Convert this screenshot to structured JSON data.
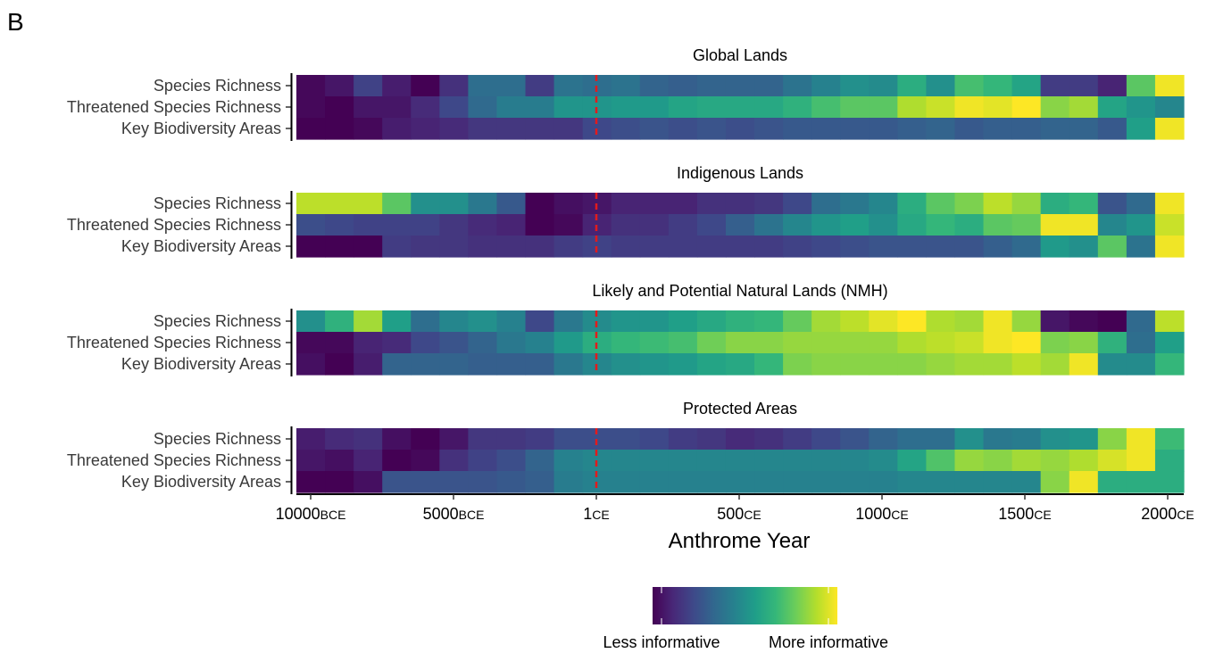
{
  "figure": {
    "panel_label": "B",
    "xlabel": "Anthrome Year"
  },
  "legend": {
    "low_label": "Less informative",
    "high_label": "More informative",
    "colormap": "viridis",
    "colors": [
      "#440154",
      "#482878",
      "#3e4989",
      "#31688e",
      "#26828e",
      "#1f9e89",
      "#35b779",
      "#6ece58",
      "#b5de2b",
      "#fde725"
    ]
  },
  "chart_data": {
    "type": "heatmap",
    "colormap": "viridis",
    "value_range": [
      0,
      1
    ],
    "x_axis": {
      "scale": "piecewise",
      "tick_labels": [
        {
          "year": "10000",
          "era": "BCE"
        },
        {
          "year": "5000",
          "era": "BCE"
        },
        {
          "year": "1",
          "era": "CE"
        },
        {
          "year": "500",
          "era": "CE"
        },
        {
          "year": "1000",
          "era": "CE"
        },
        {
          "year": "1500",
          "era": "CE"
        },
        {
          "year": "2000",
          "era": "CE"
        }
      ]
    },
    "reference_line": {
      "at": "1 CE",
      "style": "dashed",
      "color": "#e31a1c"
    },
    "time_bins": [
      "10000 BCE",
      "9000 BCE",
      "8000 BCE",
      "7000 BCE",
      "6000 BCE",
      "5000 BCE",
      "4000 BCE",
      "3000 BCE",
      "2000 BCE",
      "1000 BCE",
      "0 CE",
      "100 CE",
      "200 CE",
      "300 CE",
      "400 CE",
      "500 CE",
      "600 CE",
      "700 CE",
      "800 CE",
      "900 CE",
      "1000 CE",
      "1100 CE",
      "1200 CE",
      "1300 CE",
      "1400 CE",
      "1500 CE",
      "1600 CE",
      "1700 CE",
      "1800 CE",
      "1900 CE",
      "2000 CE"
    ],
    "rows": [
      "Species Richness",
      "Threatened Species Richness",
      "Key Biodiversity Areas"
    ],
    "panels": [
      {
        "title": "Global Lands",
        "values": [
          [
            0.02,
            0.06,
            0.2,
            0.08,
            0.0,
            0.14,
            0.36,
            0.36,
            0.18,
            0.38,
            0.36,
            0.38,
            0.32,
            0.3,
            0.32,
            0.32,
            0.32,
            0.38,
            0.44,
            0.5,
            0.48,
            0.62,
            0.5,
            0.7,
            0.66,
            0.58,
            0.18,
            0.18,
            0.1,
            0.74,
            0.98
          ],
          [
            0.02,
            0.0,
            0.06,
            0.06,
            0.12,
            0.22,
            0.34,
            0.42,
            0.42,
            0.52,
            0.52,
            0.54,
            0.54,
            0.58,
            0.6,
            0.6,
            0.6,
            0.64,
            0.7,
            0.74,
            0.74,
            0.88,
            0.92,
            0.98,
            0.96,
            1.0,
            0.82,
            0.86,
            0.58,
            0.52,
            0.46
          ],
          [
            0.0,
            0.0,
            0.02,
            0.08,
            0.1,
            0.12,
            0.16,
            0.16,
            0.16,
            0.16,
            0.22,
            0.24,
            0.26,
            0.24,
            0.26,
            0.24,
            0.26,
            0.28,
            0.28,
            0.28,
            0.28,
            0.3,
            0.32,
            0.28,
            0.3,
            0.3,
            0.32,
            0.32,
            0.28,
            0.56,
            0.98
          ]
        ]
      },
      {
        "title": "Indigenous Lands",
        "values": [
          [
            0.9,
            0.9,
            0.9,
            0.74,
            0.5,
            0.5,
            0.4,
            0.28,
            0.0,
            0.04,
            0.06,
            0.1,
            0.1,
            0.1,
            0.14,
            0.14,
            0.16,
            0.22,
            0.36,
            0.4,
            0.46,
            0.62,
            0.74,
            0.8,
            0.9,
            0.84,
            0.62,
            0.66,
            0.26,
            0.34,
            0.98
          ],
          [
            0.24,
            0.22,
            0.2,
            0.2,
            0.2,
            0.16,
            0.12,
            0.1,
            0.0,
            0.02,
            0.1,
            0.14,
            0.14,
            0.18,
            0.22,
            0.3,
            0.38,
            0.46,
            0.52,
            0.56,
            0.5,
            0.6,
            0.66,
            0.62,
            0.74,
            0.76,
            0.98,
            0.98,
            0.46,
            0.52,
            0.92
          ],
          [
            0.0,
            0.0,
            0.0,
            0.18,
            0.16,
            0.16,
            0.14,
            0.14,
            0.14,
            0.18,
            0.2,
            0.18,
            0.18,
            0.18,
            0.18,
            0.18,
            0.18,
            0.2,
            0.22,
            0.24,
            0.26,
            0.26,
            0.26,
            0.26,
            0.3,
            0.34,
            0.54,
            0.5,
            0.74,
            0.38,
            0.98
          ]
        ]
      },
      {
        "title": "Likely and Potential Natural Lands (NMH)",
        "values": [
          [
            0.5,
            0.64,
            0.86,
            0.56,
            0.36,
            0.46,
            0.5,
            0.44,
            0.22,
            0.4,
            0.48,
            0.52,
            0.52,
            0.56,
            0.6,
            0.64,
            0.66,
            0.76,
            0.86,
            0.9,
            0.96,
            1.0,
            0.88,
            0.86,
            0.98,
            0.84,
            0.06,
            0.02,
            0.0,
            0.34,
            0.9
          ],
          [
            0.02,
            0.02,
            0.1,
            0.12,
            0.22,
            0.26,
            0.32,
            0.4,
            0.44,
            0.54,
            0.62,
            0.66,
            0.68,
            0.7,
            0.78,
            0.82,
            0.82,
            0.84,
            0.84,
            0.84,
            0.84,
            0.88,
            0.9,
            0.92,
            0.98,
            1.0,
            0.8,
            0.82,
            0.64,
            0.36,
            0.56
          ],
          [
            0.04,
            0.0,
            0.08,
            0.32,
            0.32,
            0.32,
            0.3,
            0.3,
            0.3,
            0.4,
            0.46,
            0.5,
            0.52,
            0.54,
            0.58,
            0.6,
            0.66,
            0.8,
            0.82,
            0.82,
            0.82,
            0.82,
            0.84,
            0.86,
            0.86,
            0.9,
            0.86,
            0.98,
            0.48,
            0.48,
            0.66
          ]
        ]
      },
      {
        "title": "Protected Areas",
        "values": [
          [
            0.08,
            0.12,
            0.14,
            0.04,
            0.0,
            0.06,
            0.16,
            0.16,
            0.18,
            0.24,
            0.24,
            0.24,
            0.22,
            0.18,
            0.16,
            0.12,
            0.14,
            0.18,
            0.22,
            0.26,
            0.32,
            0.36,
            0.36,
            0.5,
            0.4,
            0.42,
            0.5,
            0.52,
            0.82,
            0.98,
            0.68
          ],
          [
            0.06,
            0.04,
            0.1,
            0.0,
            0.02,
            0.14,
            0.2,
            0.24,
            0.32,
            0.44,
            0.46,
            0.46,
            0.46,
            0.46,
            0.46,
            0.46,
            0.46,
            0.46,
            0.46,
            0.46,
            0.48,
            0.58,
            0.72,
            0.84,
            0.82,
            0.86,
            0.84,
            0.88,
            0.94,
            0.98,
            0.62
          ],
          [
            0.0,
            0.0,
            0.04,
            0.26,
            0.26,
            0.26,
            0.26,
            0.28,
            0.3,
            0.42,
            0.44,
            0.44,
            0.44,
            0.44,
            0.44,
            0.44,
            0.44,
            0.44,
            0.44,
            0.44,
            0.44,
            0.46,
            0.46,
            0.46,
            0.46,
            0.46,
            0.82,
            0.98,
            0.62,
            0.62,
            0.62
          ]
        ]
      }
    ]
  }
}
